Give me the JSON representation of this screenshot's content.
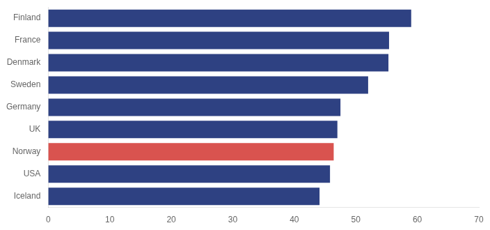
{
  "chart_data": {
    "type": "bar",
    "orientation": "horizontal",
    "categories": [
      "Finland",
      "France",
      "Denmark",
      "Sweden",
      "Germany",
      "UK",
      "Norway",
      "USA",
      "Iceland"
    ],
    "values": [
      59.0,
      55.4,
      55.3,
      52.0,
      47.5,
      47.0,
      46.4,
      45.8,
      44.1
    ],
    "colors": [
      "#2e4182",
      "#2e4182",
      "#2e4182",
      "#2e4182",
      "#2e4182",
      "#2e4182",
      "#d9534f",
      "#2e4182",
      "#2e4182"
    ],
    "xlim": [
      0,
      70
    ],
    "xticks": [
      0,
      10,
      20,
      30,
      40,
      50,
      60,
      70
    ],
    "grid": false
  }
}
